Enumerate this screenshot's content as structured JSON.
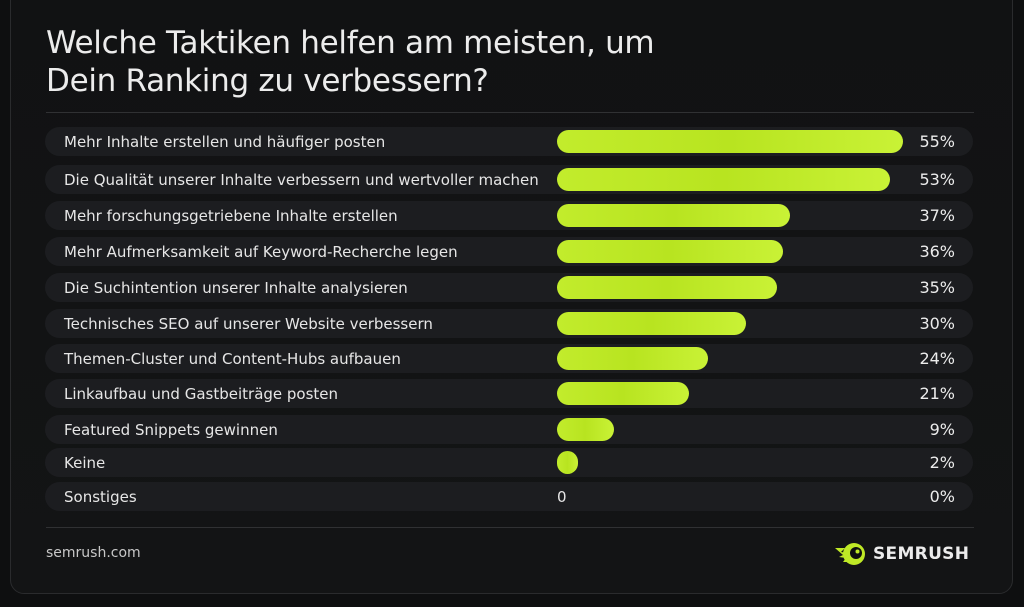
{
  "title_line1": "Welche Taktiken helfen am meisten, um",
  "title_line2": "Dein Ranking zu verbessern?",
  "footer": {
    "source": "semrush.com",
    "brand": "SEMRUSH"
  },
  "colors": {
    "bar": "#bfe926",
    "background": "#0e0f10",
    "row": "#1c1d20"
  },
  "chart_data": {
    "type": "bar",
    "orientation": "horizontal",
    "title": "Welche Taktiken helfen am meisten, um Dein Ranking zu verbessern?",
    "categories": [
      "Mehr Inhalte erstellen und häufiger posten",
      "Die Qualität unserer Inhalte verbessern und wertvoller machen",
      "Mehr forschungsgetriebene Inhalte erstellen",
      "Mehr Aufmerksamkeit auf Keyword-Recherche legen",
      "Die Suchintention unserer Inhalte analysieren",
      "Technisches SEO auf unserer Website verbessern",
      "Themen-Cluster und Content-Hubs aufbauen",
      "Linkaufbau und Gastbeiträge posten",
      "Featured Snippets gewinnen",
      "Keine",
      "Sonstiges"
    ],
    "values": [
      55,
      53,
      37,
      36,
      35,
      30,
      24,
      21,
      9,
      2,
      0
    ],
    "value_labels": [
      "55%",
      "53%",
      "37%",
      "36%",
      "35%",
      "30%",
      "24%",
      "21%",
      "9%",
      "2%",
      "0%"
    ],
    "zero_marker": "0",
    "unit": "%",
    "xlim": [
      0,
      55
    ],
    "grid": false,
    "legend": "none"
  }
}
